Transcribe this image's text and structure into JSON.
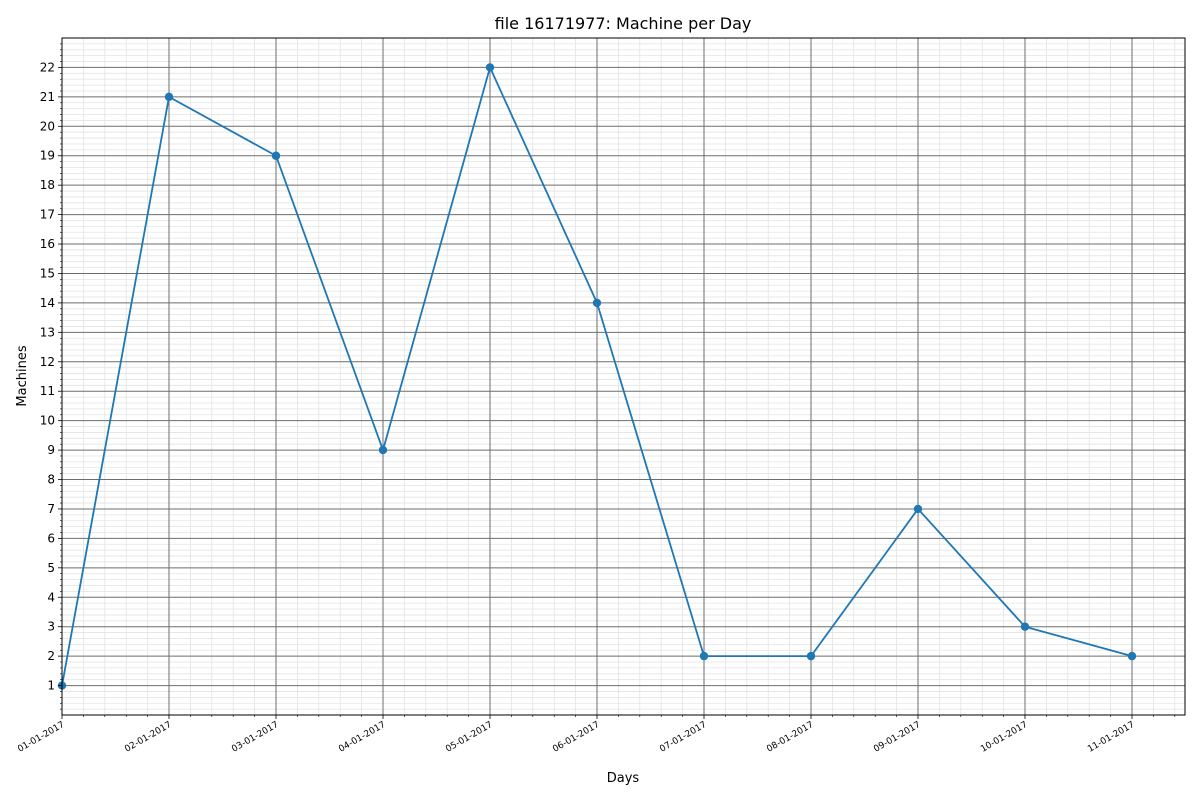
{
  "chart_data": {
    "type": "line",
    "title": "file 16171977: Machine per Day",
    "xlabel": "Days",
    "ylabel": "Machines",
    "categories": [
      "01-01-2017",
      "02-01-2017",
      "03-01-2017",
      "04-01-2017",
      "05-01-2017",
      "06-01-2017",
      "07-01-2017",
      "08-01-2017",
      "09-01-2017",
      "10-01-2017",
      "11-01-2017"
    ],
    "series": [
      {
        "values": [
          1,
          21,
          19,
          9,
          22,
          14,
          2,
          2,
          7,
          3,
          2
        ]
      }
    ],
    "ylim": [
      0,
      23
    ],
    "yticks": [
      1,
      2,
      3,
      4,
      5,
      6,
      7,
      8,
      9,
      10,
      11,
      12,
      13,
      14,
      15,
      16,
      17,
      18,
      19,
      20,
      21,
      22
    ],
    "grid": true,
    "minor_grid": true,
    "marker": "circle",
    "line_color": "#1f77b4",
    "major_grid_color": "#6e6e6e",
    "minor_grid_color": "#e3e3e3"
  }
}
